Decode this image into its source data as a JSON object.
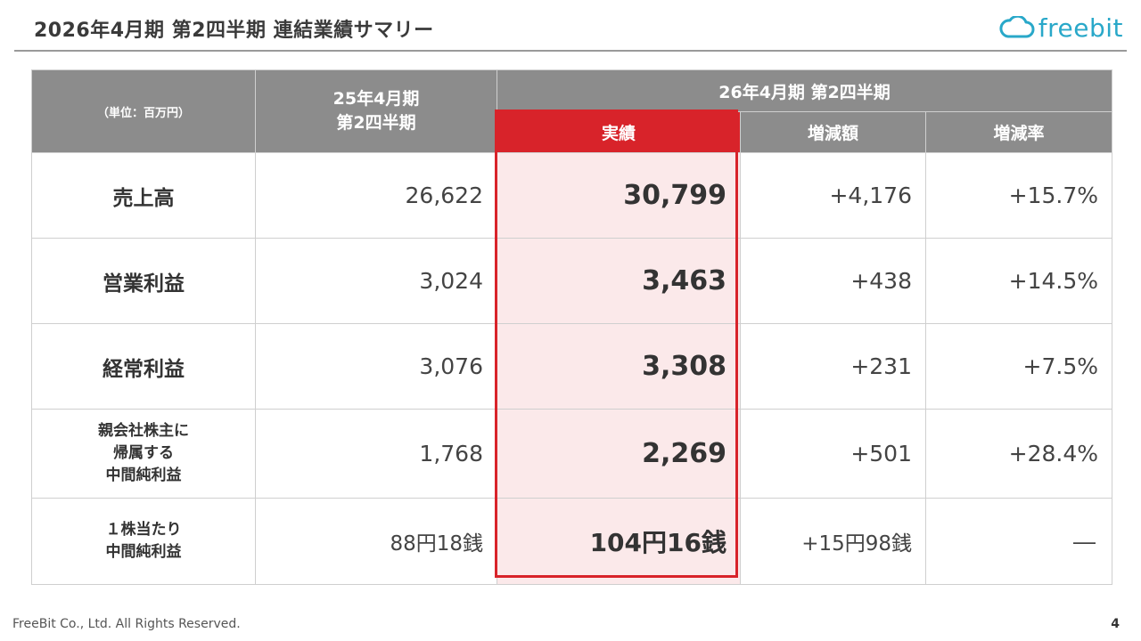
{
  "slide": {
    "title": "2026年4月期 第2四半期 連結業績サマリー",
    "logo_text": "freebit",
    "footer": "FreeBit Co., Ltd. All Rights Reserved.",
    "page_number": "4",
    "colors": {
      "header_gray": "#8c8c8c",
      "accent_red": "#d8232a",
      "highlight_fill": "#fbe9ea",
      "logo_blue": "#29a8c9"
    }
  },
  "table": {
    "unit_label": "（単位：百万円）",
    "prev_period_header": "25年4月期\n第2四半期",
    "current_period_header": "26年4月期 第2四半期",
    "sub_headers": {
      "actual": "実績",
      "change_amount": "増減額",
      "change_rate": "増減率"
    },
    "rows": [
      {
        "label": "売上高",
        "prev": "26,622",
        "actual": "30,799",
        "change": "+4,176",
        "rate": "+15.7%"
      },
      {
        "label": "営業利益",
        "prev": "3,024",
        "actual": "3,463",
        "change": "+438",
        "rate": "+14.5%"
      },
      {
        "label": "経常利益",
        "prev": "3,076",
        "actual": "3,308",
        "change": "+231",
        "rate": "+7.5%"
      },
      {
        "label": "親会社株主に\n帰属する\n中間純利益",
        "prev": "1,768",
        "actual": "2,269",
        "change": "+501",
        "rate": "+28.4%"
      },
      {
        "label": "１株当たり\n中間純利益",
        "prev": "88円18銭",
        "actual": "104円16銭",
        "change": "+15円98銭",
        "rate": "―"
      }
    ]
  }
}
